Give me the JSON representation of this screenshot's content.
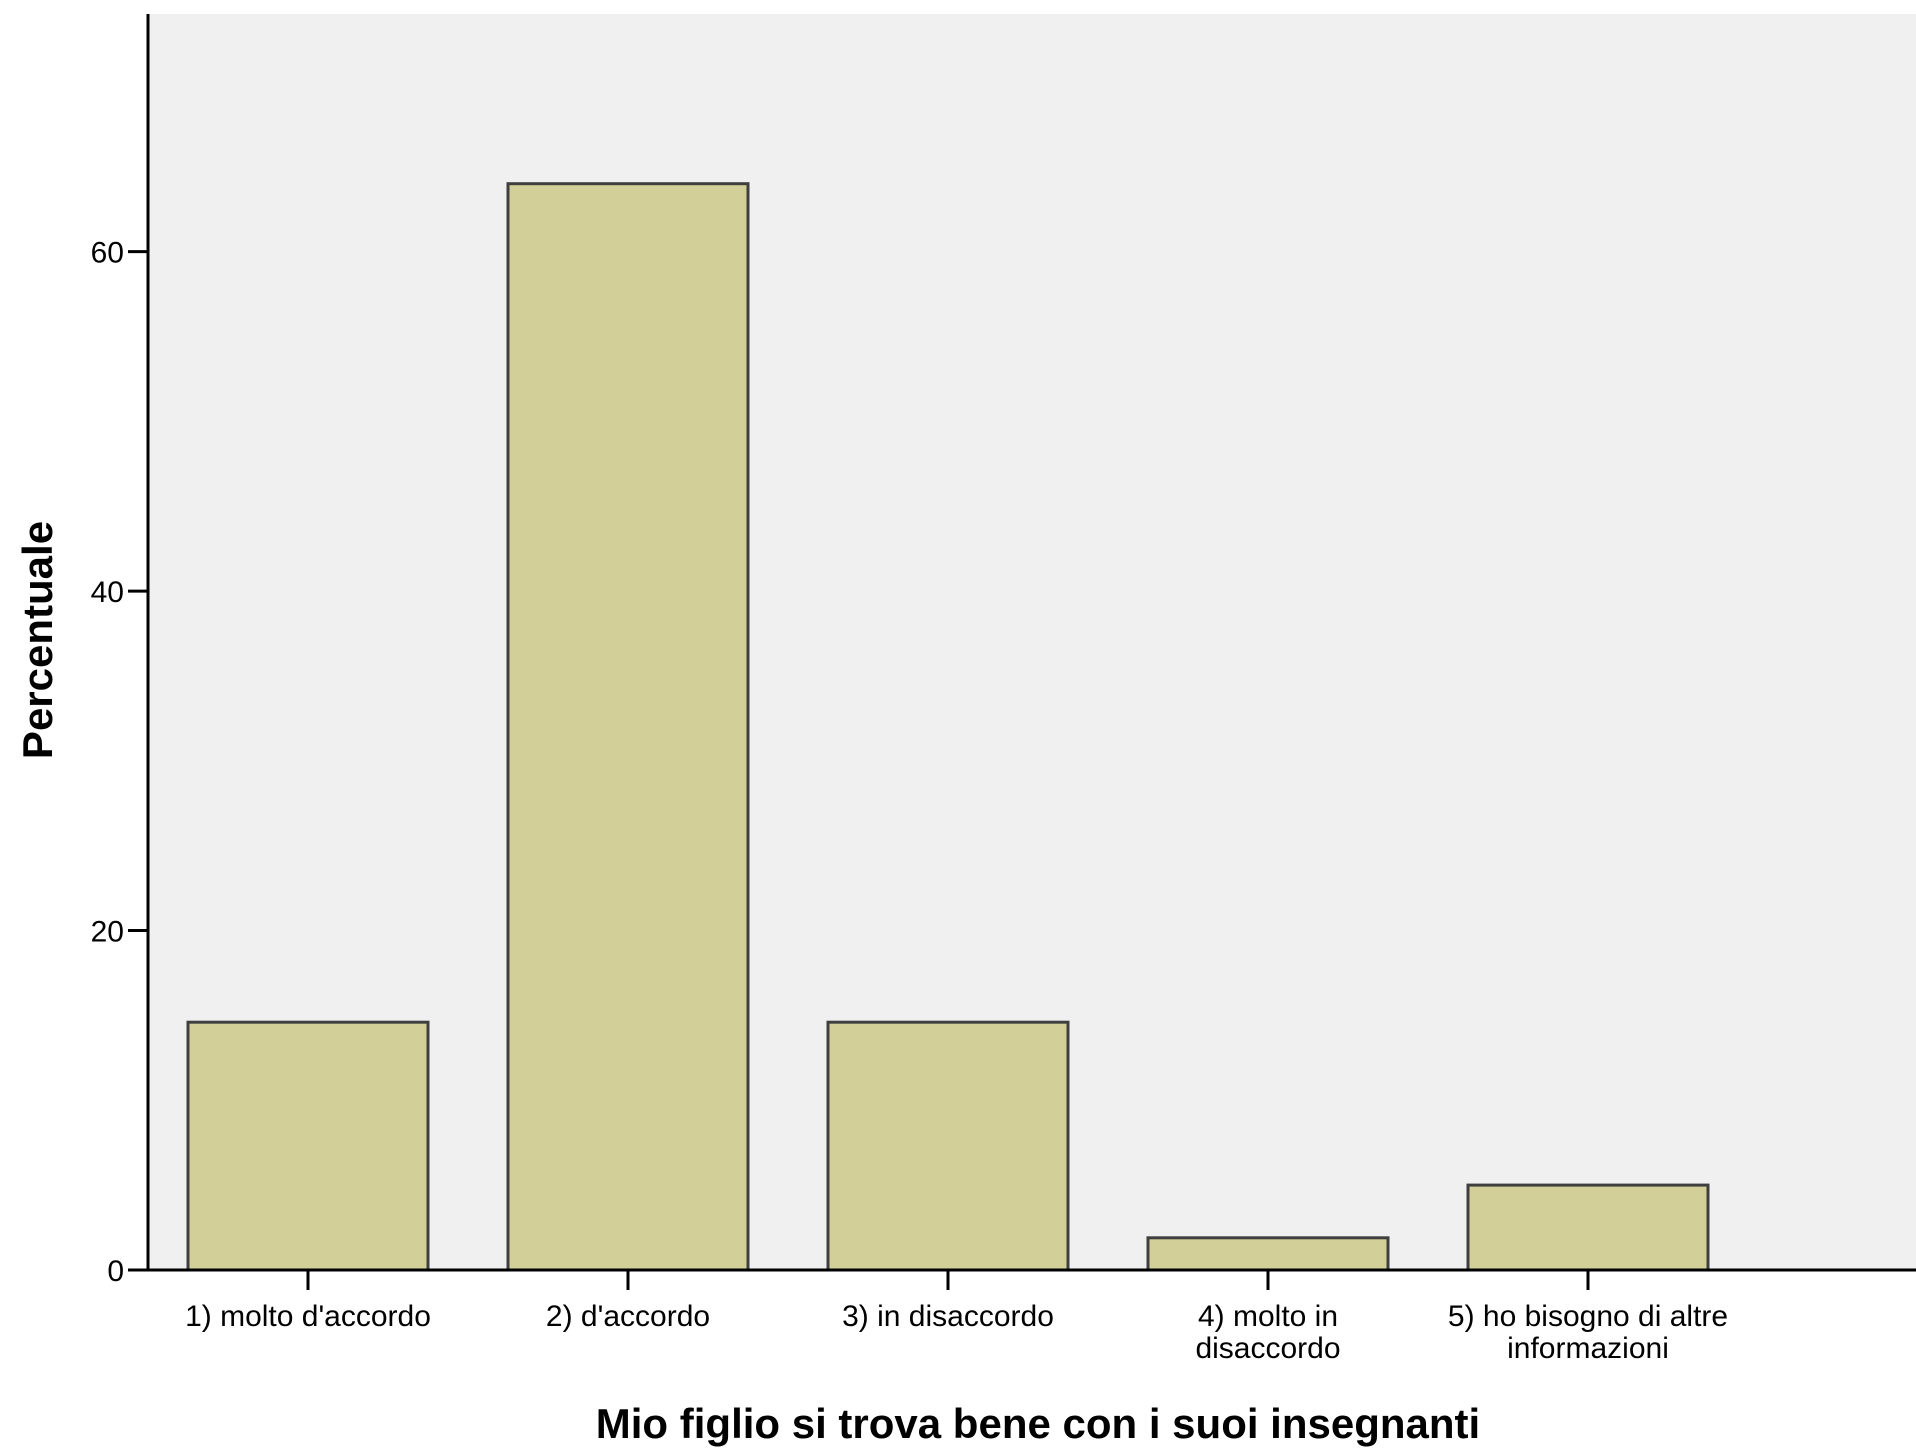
{
  "chart_data": {
    "type": "bar",
    "title": "",
    "xlabel": "Mio figlio si trova bene con i suoi insegnanti",
    "ylabel": "Percentuale",
    "categories": [
      "1) molto d'accordo",
      "2) d'accordo",
      "3) in disaccordo",
      "4) molto in disaccordo",
      "5) ho bisogno di altre informazioni"
    ],
    "category_lines": [
      [
        "1) molto d'accordo"
      ],
      [
        "2) d'accordo"
      ],
      [
        "3) in disaccordo"
      ],
      [
        "4) molto in",
        "disaccordo"
      ],
      [
        "5) ho bisogno di altre",
        "informazioni"
      ]
    ],
    "values": [
      14.6,
      64.0,
      14.6,
      1.9,
      5.0
    ],
    "yticks": [
      0,
      20,
      40,
      60
    ],
    "ylim": [
      0,
      74
    ],
    "grid": false,
    "legend": "none",
    "colors": {
      "plot_background": "#f0f0f0",
      "bar_fill": "#d3cf98",
      "bar_stroke": "#3f3f3f",
      "axis": "#000000"
    }
  }
}
